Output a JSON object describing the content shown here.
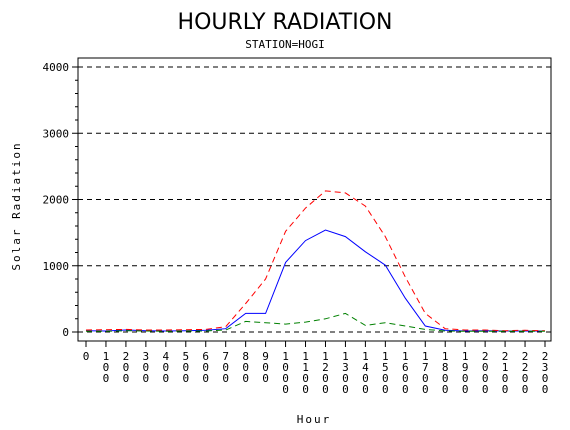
{
  "chart_data": {
    "type": "line",
    "title": "HOURLY RADIATION",
    "subtitle": "STATION=HOGI",
    "xlabel": "Hour",
    "ylabel": "Solar Radiation",
    "ylim": [
      0,
      4000
    ],
    "yticks": [
      0,
      1000,
      2000,
      3000,
      4000
    ],
    "grid": "horizontal dashed",
    "x": [
      0,
      100,
      200,
      300,
      400,
      500,
      600,
      700,
      800,
      900,
      1000,
      1100,
      1200,
      1300,
      1400,
      1500,
      1600,
      1700,
      1800,
      1900,
      2000,
      2100,
      2200,
      2300
    ],
    "x_tick_labels": [
      "0",
      "100",
      "200",
      "300",
      "400",
      "500",
      "600",
      "700",
      "800",
      "900",
      "1000",
      "1100",
      "1200",
      "1300",
      "1400",
      "1500",
      "1600",
      "1700",
      "1800",
      "1900",
      "2000",
      "2100",
      "2200",
      "2300"
    ],
    "series": [
      {
        "color": "#0000ff",
        "dash": "solid",
        "values": [
          20,
          15,
          30,
          20,
          15,
          20,
          25,
          50,
          280,
          280,
          1050,
          1380,
          1540,
          1440,
          1210,
          1010,
          510,
          90,
          25,
          15,
          20,
          15,
          15,
          15
        ]
      },
      {
        "color": "#ff0000",
        "dash": "dashed",
        "values": [
          30,
          35,
          40,
          30,
          30,
          35,
          40,
          80,
          430,
          800,
          1520,
          1870,
          2130,
          2100,
          1900,
          1440,
          830,
          280,
          50,
          30,
          30,
          20,
          25,
          20
        ]
      },
      {
        "color": "#008000",
        "dash": "dashed",
        "values": [
          10,
          10,
          20,
          15,
          10,
          15,
          15,
          30,
          160,
          140,
          120,
          150,
          200,
          280,
          100,
          140,
          90,
          40,
          15,
          10,
          10,
          10,
          10,
          10
        ]
      }
    ]
  }
}
